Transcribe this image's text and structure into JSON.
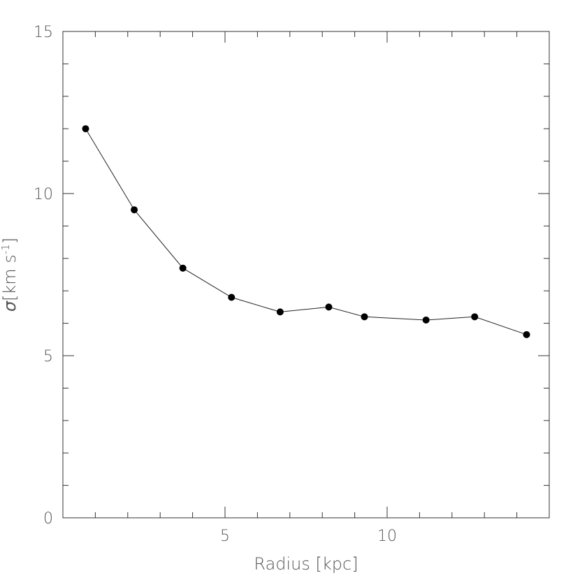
{
  "chart_data": {
    "type": "line",
    "xlabel": "Radius [kpc]",
    "ylabel_symbol": "σ",
    "ylabel_text": "[km s",
    "ylabel_sup": "-1",
    "ylabel_end": "]",
    "xlim": [
      0,
      15
    ],
    "ylim": [
      0,
      15
    ],
    "x_major_ticks": [
      5,
      10
    ],
    "x_tick_labels": [
      "5",
      "10"
    ],
    "x_minor_ticks": [
      1,
      2,
      3,
      4,
      6,
      7,
      8,
      9,
      11,
      12,
      13,
      14
    ],
    "y_major_ticks": [
      0,
      5,
      10,
      15
    ],
    "y_tick_labels": [
      "0",
      "5",
      "10",
      "15"
    ],
    "y_minor_ticks": [
      1,
      2,
      3,
      4,
      6,
      7,
      8,
      9,
      11,
      12,
      13,
      14
    ],
    "grid": false,
    "marker": "filled-circle",
    "series": [
      {
        "x": [
          0.7,
          2.2,
          3.7,
          5.2,
          6.7,
          8.2,
          9.3,
          11.2,
          12.7,
          14.3
        ],
        "y": [
          12.0,
          9.5,
          7.7,
          6.8,
          6.35,
          6.5,
          6.2,
          6.1,
          6.2,
          5.65
        ]
      }
    ]
  }
}
